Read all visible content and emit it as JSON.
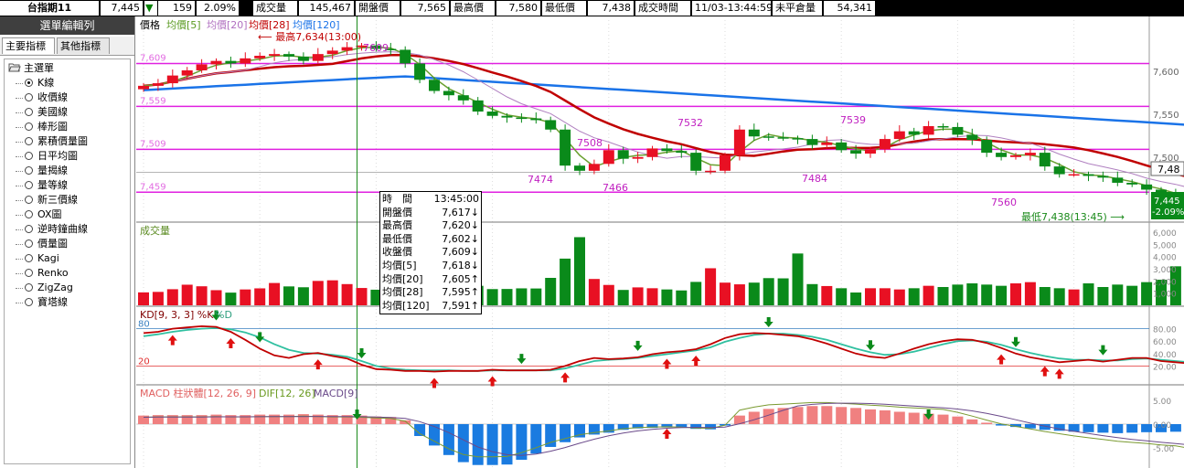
{
  "header": {
    "symbol": "台指期11",
    "price": "7,445",
    "change_arrow": "▼",
    "change": "159",
    "change_pct": "2.09%",
    "fields": [
      {
        "label": "成交量",
        "value": "145,467"
      },
      {
        "label": "開盤價",
        "value": "7,565"
      },
      {
        "label": "最高價",
        "value": "7,580"
      },
      {
        "label": "最低價",
        "value": "7,438"
      },
      {
        "label": "成交時間",
        "value": "11/03-13:44:59"
      },
      {
        "label": "未平倉量",
        "value": "54,341"
      }
    ]
  },
  "sidebar": {
    "title": "選單編輯列",
    "tabs": [
      "主要指標",
      "其他指標"
    ],
    "root": "主選單",
    "items": [
      "K線",
      "收價線",
      "美國線",
      "棒形圖",
      "累積價量圖",
      "日平均圖",
      "量揭線",
      "量等線",
      "新三價線",
      "OX圖",
      "逆時鐘曲線",
      "價量圖",
      "Kagi",
      "Renko",
      "ZigZag",
      "寶塔線"
    ],
    "selected_index": 0
  },
  "price_panel": {
    "legend": {
      "title": "價格",
      "ma5": "均價[5]",
      "ma20": "均價[20]",
      "ma28": "均價[28]",
      "ma120": "均價[120]"
    },
    "y_labels_left": [
      "7,609",
      "7,559",
      "7,509",
      "7,459"
    ],
    "y_labels_right": [
      "7,600",
      "7,550",
      "7,500"
    ],
    "current_price_box": {
      "price": "7,445",
      "pct": "-2.09%"
    },
    "ref_value": "7,48",
    "high_annotation": "最高7,634(13:00)",
    "low_annotation": "最低7,438(13:45)",
    "point_labels": [
      "7609",
      "7474",
      "7508",
      "7466",
      "7532",
      "7539",
      "7484",
      "7560"
    ]
  },
  "volume_panel": {
    "title": "成交量",
    "y_labels": [
      "6,000",
      "5,000",
      "4,000",
      "3,000",
      "2,000",
      "1,000"
    ]
  },
  "kd_panel": {
    "title": "KD[9, 3, 3] %K",
    "title_d": "%D",
    "level_high": "80",
    "level_low": "20",
    "y_labels": [
      "80.00",
      "60.00",
      "40.00",
      "20.00"
    ]
  },
  "macd_panel": {
    "title": "MACD 柱狀體[12, 26, 9]",
    "dif": "DIF[12, 26]",
    "macd": "MACD[9]",
    "y_labels": [
      "5.00",
      "0.00",
      "-5.00",
      "-10.00"
    ]
  },
  "tooltip": {
    "rows": [
      {
        "label": "時　間",
        "value": "13:45:00"
      },
      {
        "label": "開盤價",
        "value": "7,617↓"
      },
      {
        "label": "最高價",
        "value": "7,620↓"
      },
      {
        "label": "最低價",
        "value": "7,602↓"
      },
      {
        "label": "收盤價",
        "value": "7,609↓"
      },
      {
        "label": "均價[5]",
        "value": "7,618↓"
      },
      {
        "label": "均價[20]",
        "value": "7,605↑"
      },
      {
        "label": "均價[28]",
        "value": "7,595↑"
      },
      {
        "label": "均價[120]",
        "value": "7,591↑"
      }
    ]
  },
  "chart_data": {
    "type": "line",
    "y_range_price": [
      7438,
      7634
    ],
    "closes": [
      7583,
      7586,
      7595,
      7601,
      7608,
      7612,
      7609,
      7615,
      7618,
      7620,
      7617,
      7612,
      7620,
      7624,
      7628,
      7630,
      7626,
      7625,
      7609,
      7590,
      7577,
      7572,
      7566,
      7553,
      7548,
      7546,
      7545,
      7543,
      7532,
      7490,
      7484,
      7492,
      7508,
      7498,
      7500,
      7510,
      7507,
      7505,
      7484,
      7484,
      7502,
      7532,
      7524,
      7523,
      7522,
      7521,
      7514,
      7517,
      7508,
      7504,
      7509,
      7521,
      7530,
      7526,
      7536,
      7535,
      7526,
      7520,
      7505,
      7500,
      7502,
      7505,
      7489,
      7480,
      7480,
      7478,
      7476,
      7470,
      7468,
      7462,
      7458,
      7453,
      7447
    ],
    "volumes": [
      1060,
      1100,
      1320,
      1690,
      1560,
      1240,
      1040,
      1300,
      1390,
      1830,
      1550,
      1480,
      2000,
      2050,
      1740,
      1420,
      1280,
      1320,
      1100,
      3070,
      3370,
      2300,
      2010,
      1600,
      1330,
      1340,
      1390,
      1380,
      2250,
      3830,
      5590,
      2160,
      1670,
      1260,
      1470,
      1400,
      1300,
      1220,
      1920,
      3040,
      1860,
      1720,
      1860,
      2230,
      2210,
      4250,
      1740,
      1580,
      1400,
      1050,
      1400,
      1400,
      1300,
      1400,
      1600,
      1500,
      1700,
      1800,
      1700,
      1600,
      1800,
      1900,
      1500,
      1400,
      1300,
      1800,
      1500,
      1700,
      1600,
      1900,
      2100,
      3200,
      4000
    ],
    "k_values": [
      73,
      75,
      80,
      82,
      84,
      83,
      75,
      62,
      48,
      37,
      33,
      39,
      41,
      36,
      32,
      22,
      15,
      14,
      12,
      12,
      11,
      12,
      12,
      12,
      14,
      13,
      13,
      13,
      14,
      20,
      28,
      33,
      31,
      32,
      34,
      39,
      42,
      44,
      47,
      55,
      65,
      71,
      73,
      72,
      70,
      68,
      63,
      56,
      48,
      40,
      35,
      33,
      40,
      48,
      55,
      60,
      63,
      62,
      57,
      49,
      40,
      34,
      30,
      26,
      28,
      30,
      27,
      30,
      33,
      33,
      28,
      26,
      24
    ],
    "d_values": [
      68,
      71,
      75,
      78,
      80,
      81,
      79,
      74,
      66,
      55,
      46,
      41,
      40,
      38,
      35,
      28,
      20,
      16,
      14,
      13,
      13,
      13,
      12,
      12,
      13,
      13,
      13,
      13,
      13,
      16,
      22,
      28,
      30,
      31,
      33,
      36,
      39,
      42,
      45,
      50,
      59,
      65,
      70,
      72,
      72,
      70,
      67,
      62,
      55,
      48,
      42,
      38,
      39,
      43,
      49,
      55,
      60,
      61,
      59,
      54,
      47,
      41,
      36,
      32,
      30,
      30,
      29,
      29,
      31,
      32,
      30,
      28,
      26
    ],
    "macd_hist": [
      1.8,
      1.9,
      1.9,
      1.9,
      1.9,
      2.0,
      1.9,
      1.9,
      2.0,
      2.0,
      2.0,
      2.1,
      2.0,
      1.9,
      1.9,
      1.8,
      1.6,
      1.5,
      0.8,
      -2.5,
      -4.5,
      -6.5,
      -8.0,
      -8.6,
      -8.6,
      -8.5,
      -7.5,
      -6.2,
      -4.8,
      -3.8,
      -2.8,
      -2.2,
      -1.8,
      -1.2,
      -0.9,
      -0.8,
      -0.7,
      -0.8,
      -1.0,
      -1.1,
      -0.3,
      1.8,
      2.6,
      3.2,
      3.4,
      3.6,
      3.8,
      3.8,
      3.6,
      3.4,
      3.1,
      2.9,
      2.6,
      2.4,
      2.2,
      2.0,
      1.6,
      1.0,
      0.3,
      -0.3,
      -0.6,
      -0.9,
      -1.2,
      -1.4,
      -1.6,
      -1.7,
      -1.8,
      -1.9,
      -1.8,
      -1.7,
      -1.7,
      -1.6,
      -1.9
    ]
  }
}
